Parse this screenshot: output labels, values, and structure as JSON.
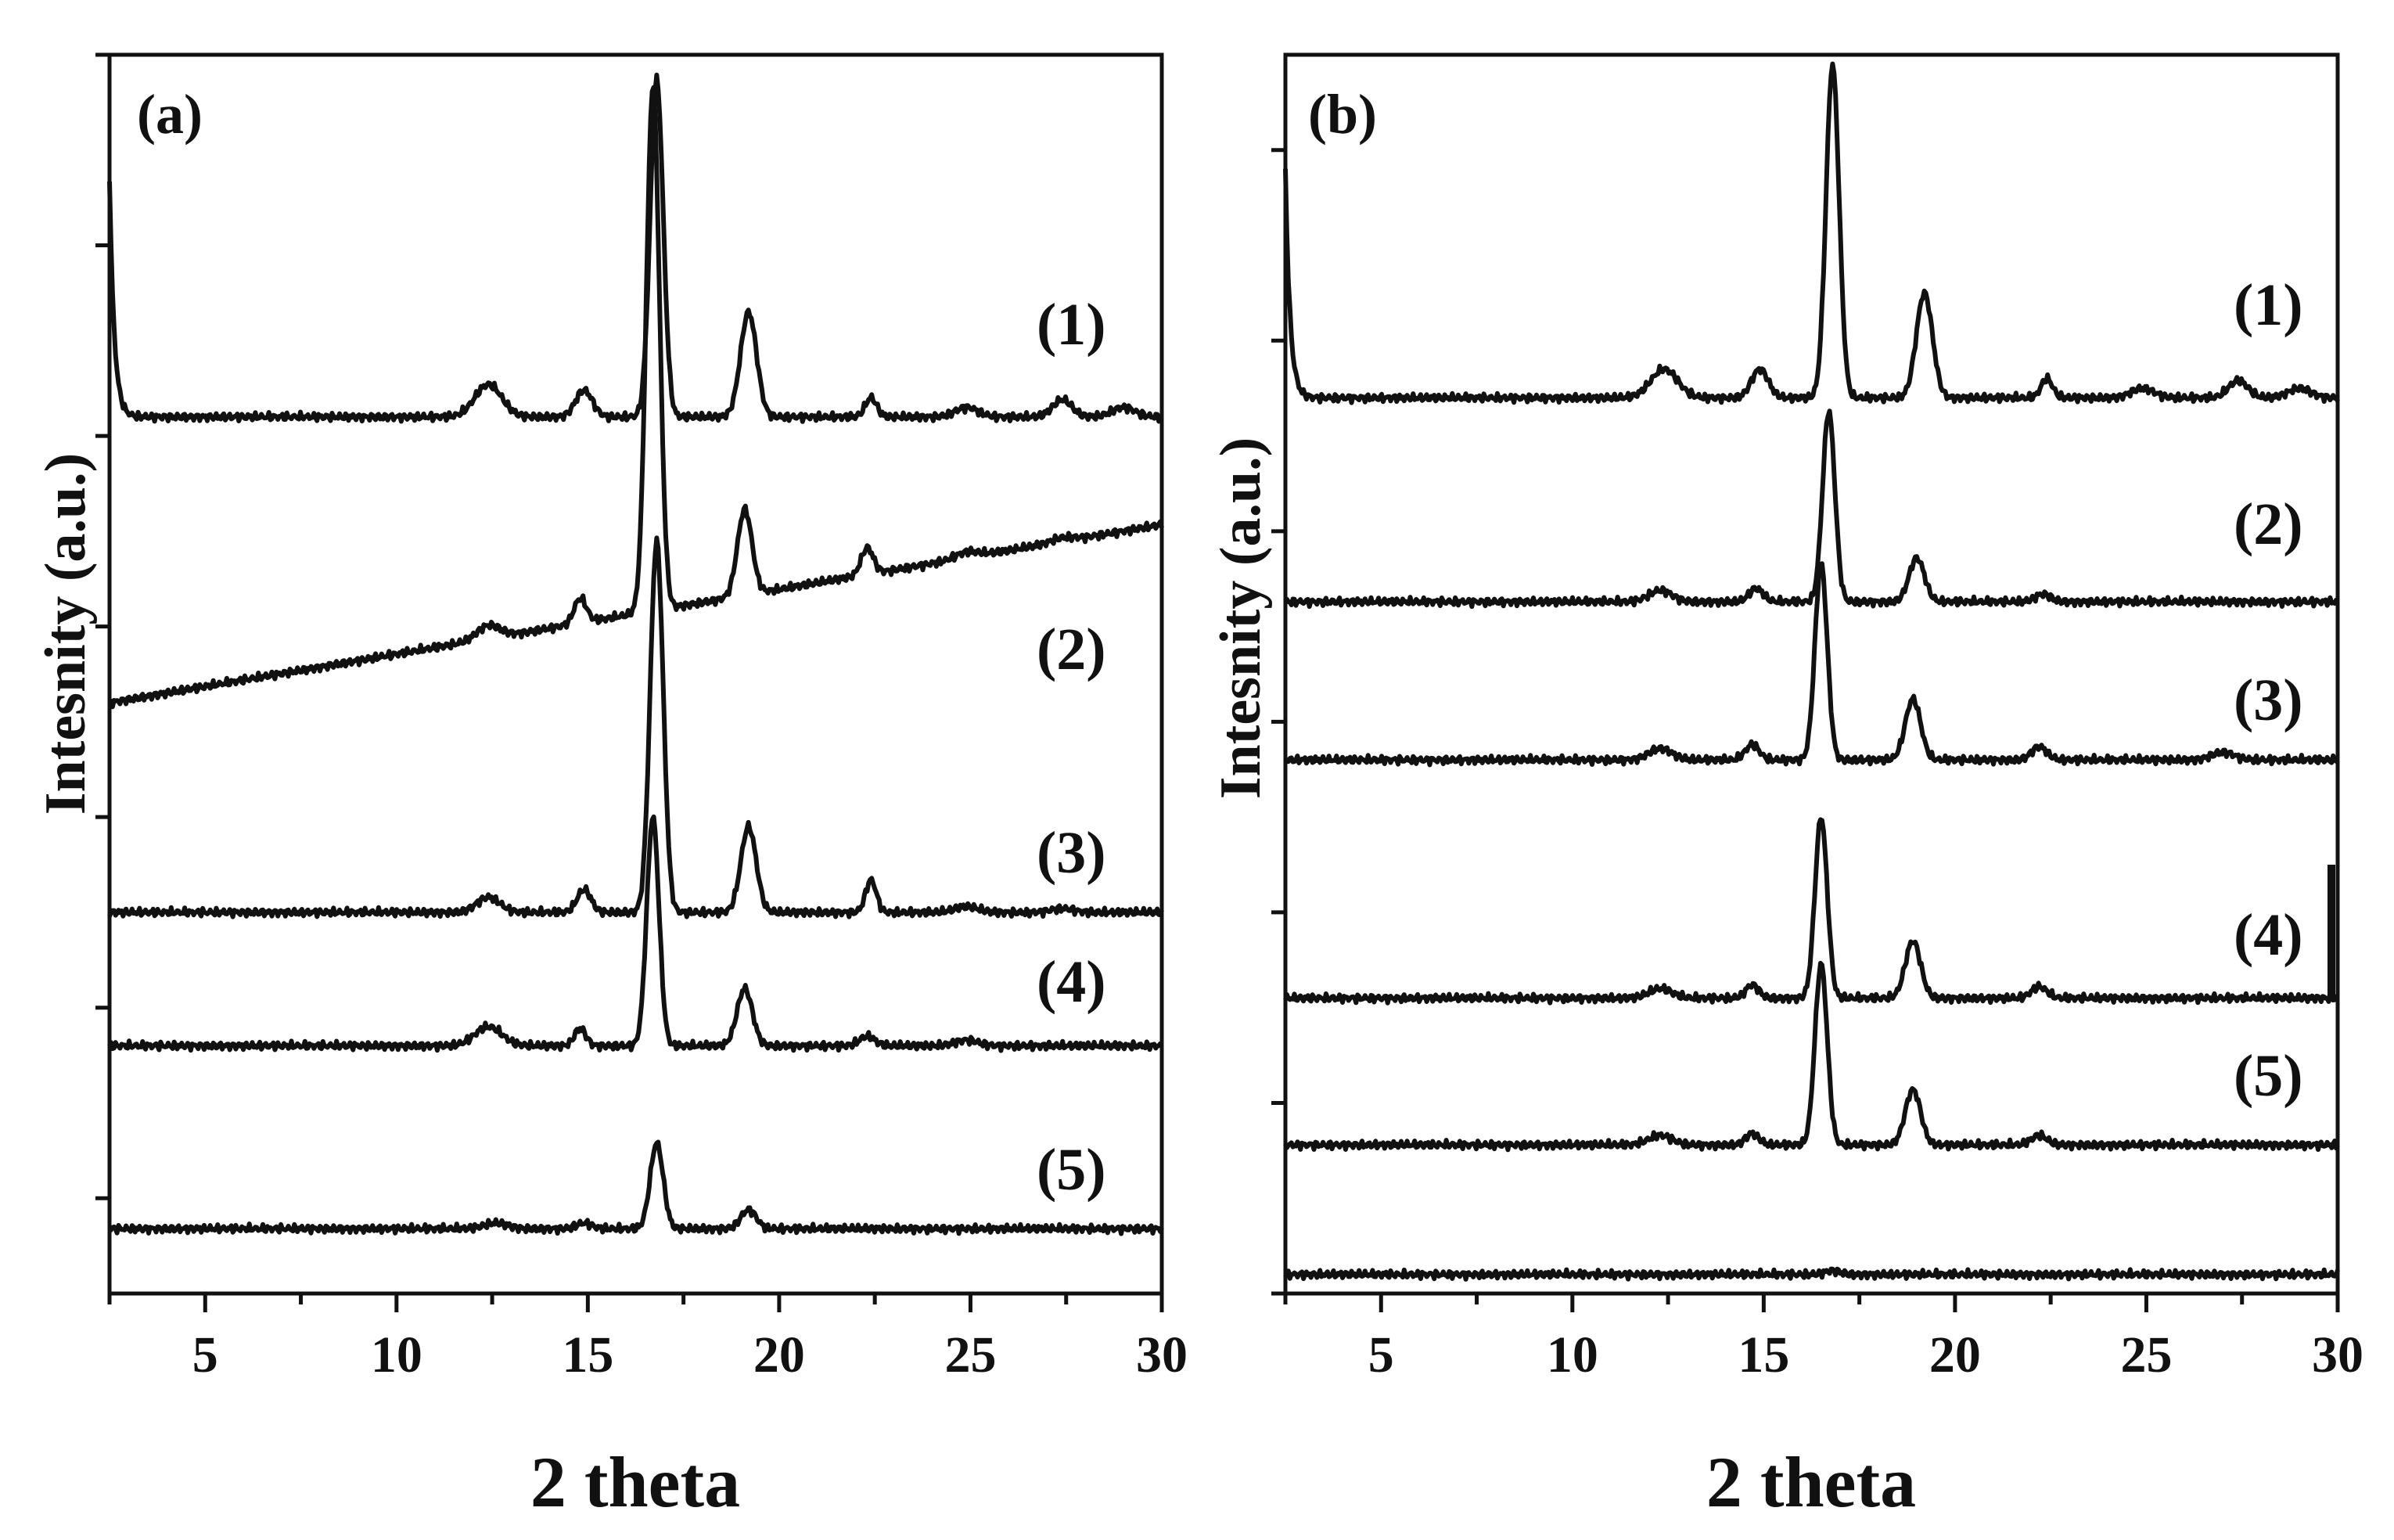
{
  "chart_data": [
    {
      "type": "line",
      "panel_label": "(a)",
      "xlabel": "2 theta",
      "ylabel": "Intesnity (a.u.)",
      "xlim": [
        2.5,
        30
      ],
      "ylim": [
        0,
        6.5
      ],
      "xticks": [
        5,
        10,
        15,
        20,
        25,
        30
      ],
      "xtick_labels": [
        "5",
        "10",
        "15",
        "20",
        "25",
        "30"
      ],
      "yticks_unlabeled": [
        0.5,
        1.5,
        2.5,
        3.5,
        4.5,
        5.5,
        6.5
      ],
      "series": [
        {
          "name": "(1)",
          "baseline": 4.6,
          "slope": 0.0,
          "amp": 1.0,
          "intercept": 0.0,
          "wall": 1.25,
          "peaks": [
            [
              12.4,
              0.17,
              0.35
            ],
            [
              14.9,
              0.14,
              0.22
            ],
            [
              16.8,
              1.77,
              0.17
            ],
            [
              19.2,
              0.55,
              0.21
            ],
            [
              22.4,
              0.1,
              0.15
            ],
            [
              24.9,
              0.05,
              0.3
            ],
            [
              27.4,
              0.09,
              0.25
            ],
            [
              29.0,
              0.05,
              0.3
            ]
          ]
        },
        {
          "name": "(2)",
          "baseline": 3.1,
          "slope": 0.0034,
          "amp": 1.0,
          "intercept": 0.0,
          "wall": 0,
          "peaks": [
            [
              12.4,
              0.07,
              0.3
            ],
            [
              14.8,
              0.13,
              0.16
            ],
            [
              16.7,
              2.75,
              0.17
            ],
            [
              19.1,
              0.45,
              0.19
            ],
            [
              22.3,
              0.14,
              0.16
            ],
            [
              24.9,
              0.03,
              0.3
            ],
            [
              27.4,
              0.02,
              0.3
            ]
          ]
        },
        {
          "name": "(3)",
          "baseline": 2.0,
          "slope": 0.0,
          "amp": 1.0,
          "intercept": 0.0,
          "wall": 0,
          "peaks": [
            [
              12.4,
              0.08,
              0.3
            ],
            [
              14.9,
              0.12,
              0.18
            ],
            [
              16.8,
              1.95,
              0.17
            ],
            [
              19.2,
              0.45,
              0.2
            ],
            [
              22.4,
              0.17,
              0.14
            ],
            [
              24.9,
              0.03,
              0.3
            ],
            [
              27.4,
              0.02,
              0.3
            ]
          ]
        },
        {
          "name": "(4)",
          "baseline": 1.3,
          "slope": 0.0,
          "amp": 1.0,
          "intercept": 0.0,
          "wall": 0,
          "peaks": [
            [
              12.4,
              0.1,
              0.35
            ],
            [
              14.8,
              0.09,
              0.15
            ],
            [
              16.7,
              1.2,
              0.16
            ],
            [
              19.1,
              0.3,
              0.2
            ],
            [
              22.3,
              0.05,
              0.2
            ],
            [
              24.9,
              0.03,
              0.3
            ]
          ]
        },
        {
          "name": "(5)",
          "baseline": 0.34,
          "slope": 0.0,
          "amp": 1.0,
          "intercept": 0.0,
          "wall": 0,
          "peaks": [
            [
              12.6,
              0.03,
              0.3
            ],
            [
              14.9,
              0.03,
              0.2
            ],
            [
              16.8,
              0.45,
              0.17
            ],
            [
              19.2,
              0.1,
              0.2
            ]
          ]
        }
      ]
    },
    {
      "type": "line",
      "panel_label": "(b)",
      "xlabel": "2 theta",
      "ylabel": "Intesnity (a.u.)",
      "xlim": [
        2.5,
        30
      ],
      "ylim": [
        0,
        6.5
      ],
      "xticks": [
        5,
        10,
        15,
        20,
        25,
        30
      ],
      "xtick_labels": [
        "5",
        "10",
        "15",
        "20",
        "25",
        "30"
      ],
      "yticks_unlabeled": [
        0.0,
        1.0,
        2.0,
        3.0,
        4.0,
        5.0,
        6.0
      ],
      "series": [
        {
          "name": "(1)",
          "baseline": 4.7,
          "slope": 0.0,
          "amp": 1.0,
          "intercept": 0.0,
          "wall": 1.2,
          "peaks": [
            [
              12.4,
              0.15,
              0.35
            ],
            [
              14.9,
              0.15,
              0.22
            ],
            [
              16.8,
              1.75,
              0.17
            ],
            [
              19.2,
              0.55,
              0.21
            ],
            [
              22.4,
              0.1,
              0.15
            ],
            [
              24.9,
              0.05,
              0.3
            ],
            [
              27.4,
              0.09,
              0.25
            ],
            [
              29.0,
              0.05,
              0.3
            ]
          ]
        },
        {
          "name": "(2)",
          "baseline": 3.63,
          "slope": 0.0,
          "amp": 1.0,
          "intercept": 0.0,
          "wall": 0,
          "peaks": [
            [
              12.3,
              0.06,
              0.3
            ],
            [
              14.8,
              0.07,
              0.18
            ],
            [
              16.7,
              1.0,
              0.16
            ],
            [
              19.0,
              0.23,
              0.2
            ],
            [
              22.3,
              0.04,
              0.2
            ]
          ]
        },
        {
          "name": "(3)",
          "baseline": 2.8,
          "slope": 0.0,
          "amp": 1.0,
          "intercept": 0.0,
          "wall": 0,
          "peaks": [
            [
              12.3,
              0.06,
              0.3
            ],
            [
              14.7,
              0.08,
              0.18
            ],
            [
              16.5,
              1.03,
              0.16
            ],
            [
              18.9,
              0.32,
              0.2
            ],
            [
              22.2,
              0.07,
              0.2
            ],
            [
              27.0,
              0.04,
              0.3
            ]
          ]
        },
        {
          "name": "(4)",
          "baseline": 1.55,
          "slope": 0.0,
          "amp": 1.0,
          "intercept": 0.0,
          "wall": 0,
          "peaks": [
            [
              12.3,
              0.05,
              0.3
            ],
            [
              14.7,
              0.07,
              0.17
            ],
            [
              16.5,
              0.95,
              0.16
            ],
            [
              18.9,
              0.3,
              0.2
            ],
            [
              22.2,
              0.06,
              0.2
            ]
          ]
        },
        {
          "name": "(5)",
          "baseline": 0.78,
          "slope": 0.0,
          "amp": 1.0,
          "intercept": 0.0,
          "wall": 0,
          "peaks": [
            [
              12.3,
              0.05,
              0.3
            ],
            [
              14.7,
              0.06,
              0.17
            ],
            [
              16.5,
              0.95,
              0.16
            ],
            [
              18.9,
              0.29,
              0.2
            ],
            [
              22.2,
              0.05,
              0.2
            ]
          ]
        },
        {
          "name": "",
          "baseline": 0.1,
          "slope": 0.0,
          "amp": 1.0,
          "intercept": 0.0,
          "wall": 0,
          "peaks": [
            [
              16.8,
              0.02,
              0.2
            ]
          ]
        }
      ]
    }
  ]
}
